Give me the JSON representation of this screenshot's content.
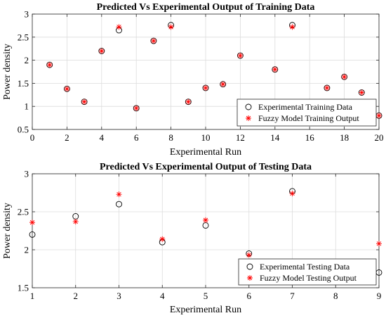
{
  "chart_data": [
    {
      "type": "scatter",
      "title": "Predicted Vs Experimental Output of Training Data",
      "xlabel": "Experimental Run",
      "ylabel": "Power density",
      "xlim": [
        0,
        20
      ],
      "ylim": [
        0.5,
        3
      ],
      "xticks": [
        0,
        2,
        4,
        6,
        8,
        10,
        12,
        14,
        16,
        18,
        20
      ],
      "yticks": [
        0.5,
        1,
        1.5,
        2,
        2.5,
        3
      ],
      "grid": true,
      "legend": "bottom-right",
      "series": [
        {
          "name": "Experimental Training Data",
          "marker": "circle",
          "color": "#000000",
          "x": [
            1,
            2,
            3,
            4,
            5,
            6,
            7,
            8,
            9,
            10,
            11,
            12,
            14,
            15,
            17,
            18,
            19,
            20
          ],
          "y": [
            1.9,
            1.38,
            1.1,
            2.2,
            2.65,
            0.96,
            2.42,
            2.76,
            1.1,
            1.4,
            1.48,
            2.1,
            1.8,
            2.76,
            1.4,
            1.64,
            1.3,
            0.8
          ]
        },
        {
          "name": "Fuzzy Model Training Output",
          "marker": "asterisk",
          "color": "#ff0000",
          "x": [
            1,
            2,
            3,
            4,
            5,
            6,
            7,
            8,
            9,
            10,
            11,
            12,
            14,
            15,
            17,
            18,
            19,
            20
          ],
          "y": [
            1.9,
            1.38,
            1.1,
            2.2,
            2.72,
            0.96,
            2.42,
            2.72,
            1.1,
            1.4,
            1.48,
            2.1,
            1.8,
            2.72,
            1.4,
            1.64,
            1.3,
            0.8
          ]
        }
      ]
    },
    {
      "type": "scatter",
      "title": "Predicted Vs Experimental Output of Testing Data",
      "xlabel": "Experimental Run",
      "ylabel": "Power density",
      "xlim": [
        1,
        9
      ],
      "ylim": [
        1.5,
        3
      ],
      "xticks": [
        1,
        2,
        3,
        4,
        5,
        6,
        7,
        8,
        9
      ],
      "yticks": [
        1.5,
        2,
        2.5,
        3
      ],
      "grid": true,
      "legend": "bottom-right",
      "series": [
        {
          "name": "Experimental Testing Data",
          "marker": "circle",
          "color": "#000000",
          "x": [
            1,
            2,
            3,
            4,
            5,
            6,
            7,
            9
          ],
          "y": [
            2.2,
            2.44,
            2.6,
            2.1,
            2.32,
            1.95,
            2.77,
            1.7
          ]
        },
        {
          "name": "Fuzzy Model Testing Output",
          "marker": "asterisk",
          "color": "#ff0000",
          "x": [
            1,
            2,
            3,
            4,
            5,
            6,
            7,
            9
          ],
          "y": [
            2.36,
            2.37,
            2.73,
            2.14,
            2.39,
            1.93,
            2.74,
            2.08
          ]
        }
      ]
    }
  ]
}
